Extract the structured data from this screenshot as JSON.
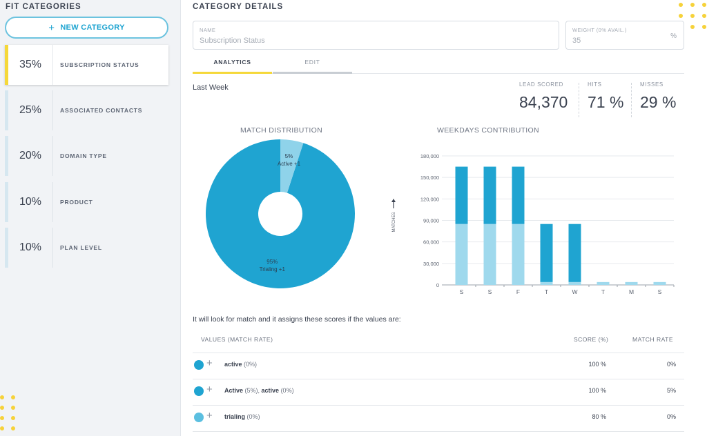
{
  "sidebar": {
    "title": "FIT CATEGORIES",
    "new_button": "NEW CATEGORY",
    "items": [
      {
        "pct": "35%",
        "label": "SUBSCRIPTION STATUS"
      },
      {
        "pct": "25%",
        "label": "ASSOCIATED CONTACTS"
      },
      {
        "pct": "20%",
        "label": "DOMAIN TYPE"
      },
      {
        "pct": "10%",
        "label": "PRODUCT"
      },
      {
        "pct": "10%",
        "label": "PLAN LEVEL"
      }
    ]
  },
  "details": {
    "title": "CATEGORY DETAILS",
    "name_label": "NAME",
    "name_value": "Subscription Status",
    "weight_label": "WEIGHT (0% AVAIL.)",
    "weight_value": "35",
    "weight_unit": "%",
    "tabs": [
      "ANALYTICS",
      "EDIT"
    ],
    "period": "Last Week",
    "stats": [
      {
        "label": "LEAD SCORED",
        "value": "84,370"
      },
      {
        "label": "HITS",
        "value": "71 %"
      },
      {
        "label": "MISSES",
        "value": "29 %"
      }
    ]
  },
  "chart_data": [
    {
      "type": "pie",
      "title": "MATCH DISTRIBUTION",
      "slices": [
        {
          "label": "95%",
          "sublabel": "Trialing +1",
          "value": 95,
          "color": "#1fa4d1"
        },
        {
          "label": "5%",
          "sublabel": "Active +1",
          "value": 5,
          "color": "#8fd3ea"
        }
      ]
    },
    {
      "type": "bar",
      "title": "WEEKDAYS CONTRIBUTION",
      "ylabel": "MATCHES",
      "categories": [
        "S",
        "S",
        "F",
        "T",
        "W",
        "T",
        "M",
        "S"
      ],
      "yticks": [
        "0",
        "30,000",
        "60,000",
        "90,000",
        "120,000",
        "150,000",
        "180,000"
      ],
      "ylim": [
        0,
        180000
      ],
      "series": [
        {
          "values": [
            85000,
            85000,
            85000,
            4000,
            4000,
            4000,
            4000,
            4000
          ],
          "color": "#9fd9ed"
        },
        {
          "values": [
            80000,
            80000,
            80000,
            81000,
            81000,
            0,
            0,
            0
          ],
          "color": "#1fa4d1"
        }
      ]
    }
  ],
  "table": {
    "intro": "It will look for match and it assigns these scores if the values are:",
    "headers": [
      "VALUES (MATCH RATE)",
      "SCORE (%)",
      "MATCH RATE"
    ],
    "rows": [
      {
        "color": "#1fa4d1",
        "v1": "active",
        "r1": " (0%)",
        "v2": "",
        "r2": "",
        "score": "100 %",
        "rate": "0%"
      },
      {
        "color": "#1fa4d1",
        "v1": "Active",
        "r1": " (5%), ",
        "v2": "active",
        "r2": " (0%)",
        "score": "100 %",
        "rate": "5%"
      },
      {
        "color": "#5bbfe0",
        "v1": "trialing",
        "r1": " (0%)",
        "v2": "",
        "r2": "",
        "score": "80 %",
        "rate": "0%"
      }
    ]
  }
}
